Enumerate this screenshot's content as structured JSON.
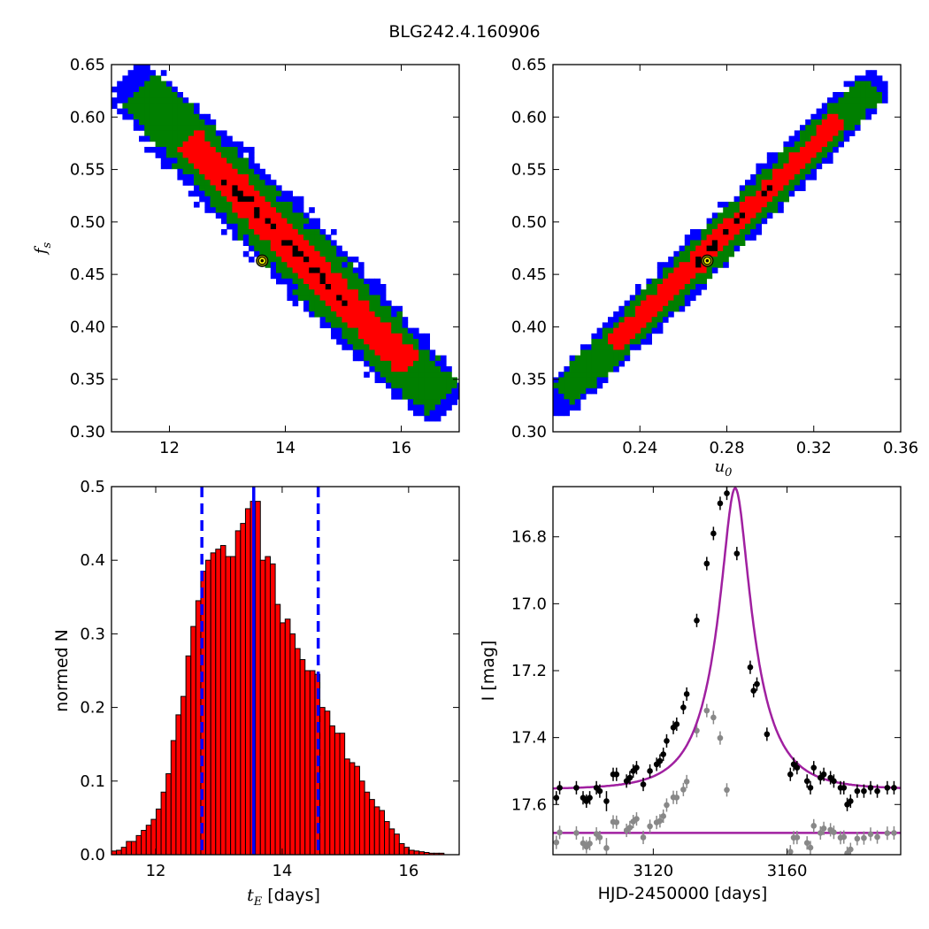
{
  "figure_title": "BLG242.4.160906",
  "chart_data": [
    {
      "type": "heatmap",
      "panel": "top-left",
      "xlabel": "",
      "ylabel_base": "f",
      "ylabel_sub": "s",
      "xlim": [
        11.0,
        17.0
      ],
      "ylim": [
        0.3,
        0.65
      ],
      "xticks": [
        12,
        14,
        16
      ],
      "yticks": [
        0.3,
        0.35,
        0.4,
        0.45,
        0.5,
        0.55,
        0.6,
        0.65
      ],
      "xtick_labels": [
        "12",
        "14",
        "16"
      ],
      "ytick_labels": [
        "0.30",
        "0.35",
        "0.40",
        "0.45",
        "0.50",
        "0.55",
        "0.60",
        "0.65"
      ],
      "band": {
        "x_start": 11.3,
        "y_start": 0.635,
        "x_end": 16.8,
        "y_end": 0.325
      },
      "regions": [
        {
          "name": "outer",
          "color": "#0000ff"
        },
        {
          "name": "middle",
          "color": "#007f00"
        },
        {
          "name": "inner",
          "color": "#ff0000"
        },
        {
          "name": "best",
          "color": "#000000"
        }
      ],
      "best_fit": {
        "x": 13.6,
        "y": 0.463
      }
    },
    {
      "type": "heatmap",
      "panel": "top-right",
      "xlabel_base": "u",
      "xlabel_sub": "0",
      "ylabel": "",
      "xlim": [
        0.2,
        0.36
      ],
      "ylim": [
        0.3,
        0.65
      ],
      "xticks": [
        0.24,
        0.28,
        0.32,
        0.36
      ],
      "yticks": [
        0.3,
        0.35,
        0.4,
        0.45,
        0.5,
        0.55,
        0.6,
        0.65
      ],
      "xtick_labels": [
        "0.24",
        "0.28",
        "0.32",
        "0.36"
      ],
      "ytick_labels": [
        "0.30",
        "0.35",
        "0.40",
        "0.45",
        "0.50",
        "0.55",
        "0.60",
        "0.65"
      ],
      "band": {
        "x_start": 0.2,
        "y_start": 0.325,
        "x_end": 0.35,
        "y_end": 0.635
      },
      "regions": [
        {
          "name": "outer",
          "color": "#0000ff"
        },
        {
          "name": "middle",
          "color": "#007f00"
        },
        {
          "name": "inner",
          "color": "#ff0000"
        },
        {
          "name": "best",
          "color": "#000000"
        }
      ],
      "best_fit": {
        "x": 0.271,
        "y": 0.463
      }
    },
    {
      "type": "bar",
      "panel": "bottom-left",
      "xlabel_base": "t",
      "xlabel_sub": "E",
      "xlabel_rest": " [days]",
      "ylabel": "normed N",
      "xlim": [
        11.3,
        16.8
      ],
      "ylim": [
        0.0,
        0.5
      ],
      "xticks": [
        12,
        14,
        16
      ],
      "yticks": [
        0.0,
        0.1,
        0.2,
        0.3,
        0.4,
        0.5
      ],
      "xtick_labels": [
        "12",
        "14",
        "16"
      ],
      "ytick_labels": [
        "0.0",
        "0.1",
        "0.2",
        "0.3",
        "0.4",
        "0.5"
      ],
      "bin_start": 11.3,
      "bin_width": 0.0785,
      "values": [
        0.005,
        0.006,
        0.01,
        0.018,
        0.018,
        0.026,
        0.033,
        0.04,
        0.048,
        0.062,
        0.085,
        0.11,
        0.155,
        0.19,
        0.215,
        0.27,
        0.31,
        0.345,
        0.385,
        0.4,
        0.41,
        0.415,
        0.42,
        0.405,
        0.405,
        0.44,
        0.45,
        0.47,
        0.48,
        0.48,
        0.4,
        0.405,
        0.395,
        0.34,
        0.315,
        0.32,
        0.3,
        0.28,
        0.265,
        0.25,
        0.25,
        0.245,
        0.2,
        0.195,
        0.175,
        0.165,
        0.165,
        0.13,
        0.125,
        0.12,
        0.1,
        0.085,
        0.075,
        0.065,
        0.06,
        0.045,
        0.035,
        0.028,
        0.015,
        0.01,
        0.006,
        0.005,
        0.004,
        0.003,
        0.002,
        0.002,
        0.002
      ],
      "bar_color": "#ff0000",
      "median": 13.55,
      "interval": [
        12.73,
        14.57
      ],
      "line_color": "#0000ff"
    },
    {
      "type": "scatter",
      "panel": "bottom-right",
      "xlabel": "HJD-2450000 [days]",
      "ylabel": "I [mag]",
      "xlim": [
        3090,
        3194
      ],
      "ylim": [
        17.75,
        16.65
      ],
      "xticks": [
        3120,
        3160
      ],
      "yticks": [
        16.8,
        17.0,
        17.2,
        17.4,
        17.6
      ],
      "xtick_labels": [
        "3120",
        "3160"
      ],
      "ytick_labels": [
        "16.8",
        "17.0",
        "17.2",
        "17.4",
        "17.6"
      ],
      "model": {
        "t0": 3144.5,
        "tE": 13.6,
        "u0": 0.271,
        "fs": 0.463,
        "I_base": 17.555,
        "color": "#a020a0"
      },
      "residual_offset": 17.685,
      "data_color": "#000000",
      "residual_color": "#888888",
      "points": [
        [
          3091,
          17.58,
          0.02
        ],
        [
          3092,
          17.55,
          0.02
        ],
        [
          3097,
          17.55,
          0.02
        ],
        [
          3099,
          17.58,
          0.02
        ],
        [
          3100,
          17.59,
          0.02
        ],
        [
          3101,
          17.58,
          0.02
        ],
        [
          3103,
          17.55,
          0.02
        ],
        [
          3104,
          17.56,
          0.02
        ],
        [
          3106,
          17.59,
          0.03
        ],
        [
          3108,
          17.51,
          0.02
        ],
        [
          3109,
          17.51,
          0.02
        ],
        [
          3112,
          17.53,
          0.02
        ],
        [
          3113,
          17.52,
          0.02
        ],
        [
          3114,
          17.5,
          0.02
        ],
        [
          3115,
          17.49,
          0.02
        ],
        [
          3117,
          17.54,
          0.02
        ],
        [
          3119,
          17.5,
          0.02
        ],
        [
          3121,
          17.48,
          0.02
        ],
        [
          3122,
          17.47,
          0.02
        ],
        [
          3123,
          17.45,
          0.02
        ],
        [
          3124,
          17.41,
          0.02
        ],
        [
          3126,
          17.37,
          0.02
        ],
        [
          3127,
          17.36,
          0.02
        ],
        [
          3129,
          17.31,
          0.02
        ],
        [
          3130,
          17.27,
          0.02
        ],
        [
          3133,
          17.05,
          0.02
        ],
        [
          3136,
          16.88,
          0.02
        ],
        [
          3138,
          16.79,
          0.02
        ],
        [
          3140,
          16.7,
          0.02
        ],
        [
          3142,
          16.67,
          0.02
        ],
        [
          3145,
          16.85,
          0.02
        ],
        [
          3149,
          17.19,
          0.02
        ],
        [
          3150,
          17.26,
          0.02
        ],
        [
          3151,
          17.24,
          0.02
        ],
        [
          3154,
          17.39,
          0.02
        ],
        [
          3161,
          17.51,
          0.02
        ],
        [
          3162,
          17.48,
          0.02
        ],
        [
          3163,
          17.49,
          0.02
        ],
        [
          3166,
          17.53,
          0.02
        ],
        [
          3167,
          17.55,
          0.02
        ],
        [
          3168,
          17.49,
          0.02
        ],
        [
          3170,
          17.52,
          0.02
        ],
        [
          3171,
          17.51,
          0.02
        ],
        [
          3173,
          17.52,
          0.02
        ],
        [
          3174,
          17.53,
          0.02
        ],
        [
          3176,
          17.55,
          0.02
        ],
        [
          3177,
          17.55,
          0.02
        ],
        [
          3178,
          17.6,
          0.02
        ],
        [
          3179,
          17.59,
          0.02
        ],
        [
          3181,
          17.56,
          0.02
        ],
        [
          3183,
          17.56,
          0.02
        ],
        [
          3185,
          17.55,
          0.02
        ],
        [
          3187,
          17.56,
          0.02
        ],
        [
          3190,
          17.55,
          0.02
        ],
        [
          3192,
          17.55,
          0.02
        ]
      ]
    }
  ]
}
